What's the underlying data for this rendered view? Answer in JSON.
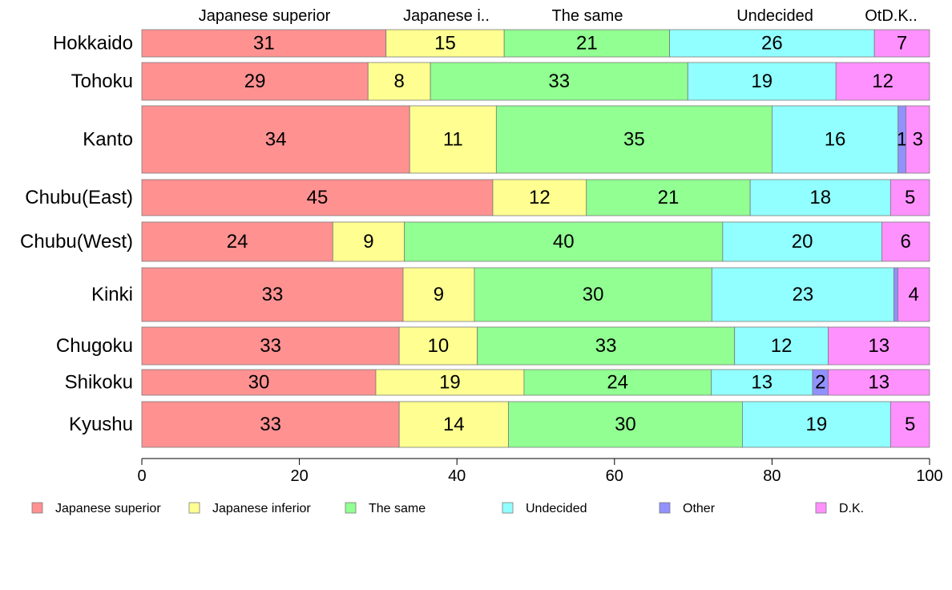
{
  "chart_data": {
    "type": "bar",
    "orientation": "horizontal",
    "stacked": true,
    "xlim": [
      0,
      100
    ],
    "x_ticks": [
      0,
      20,
      40,
      60,
      80,
      100
    ],
    "grid": false,
    "legend_position": "bottom",
    "categories": [
      "Hokkaido",
      "Tohoku",
      "Kanto",
      "Chubu(East)",
      "Chubu(West)",
      "Kinki",
      "Chugoku",
      "Shikoku",
      "Kyushu"
    ],
    "top_labels": [
      "Japanese superior",
      "Japanese i..",
      "The same",
      "Undecided",
      "OtD.K.."
    ],
    "series": [
      {
        "name": "Japanese superior",
        "color": "#ff9191",
        "values": [
          31,
          29,
          34,
          45,
          24,
          33,
          33,
          30,
          33
        ]
      },
      {
        "name": "Japanese inferior",
        "color": "#ffff91",
        "values": [
          15,
          8,
          11,
          12,
          9,
          9,
          10,
          19,
          14
        ]
      },
      {
        "name": "The same",
        "color": "#91ff91",
        "values": [
          21,
          33,
          35,
          21,
          40,
          30,
          33,
          24,
          30
        ]
      },
      {
        "name": "Undecided",
        "color": "#91ffff",
        "values": [
          26,
          19,
          16,
          18,
          20,
          23,
          12,
          13,
          19
        ]
      },
      {
        "name": "Other",
        "color": "#9191ff",
        "values": [
          0,
          0,
          1,
          0,
          0,
          0.5,
          0,
          2,
          0
        ]
      },
      {
        "name": "D.K.",
        "color": "#ff91ff",
        "values": [
          7,
          12,
          3,
          5,
          6,
          4,
          13,
          13,
          5
        ]
      }
    ],
    "data_labels": [
      [
        "31",
        "15",
        "21",
        "26",
        "",
        "7"
      ],
      [
        "29",
        "8",
        "33",
        "19",
        "",
        "12"
      ],
      [
        "34",
        "11",
        "35",
        "16",
        "1",
        "3"
      ],
      [
        "45",
        "12",
        "21",
        "18",
        "",
        "5"
      ],
      [
        "24",
        "9",
        "40",
        "20",
        "",
        "6"
      ],
      [
        "33",
        "9",
        "30",
        "23",
        "",
        "4"
      ],
      [
        "33",
        "10",
        "33",
        "12",
        "",
        "13"
      ],
      [
        "30",
        "19",
        "24",
        "13",
        "2",
        "13"
      ],
      [
        "33",
        "14",
        "30",
        "19",
        "",
        "5"
      ]
    ]
  }
}
